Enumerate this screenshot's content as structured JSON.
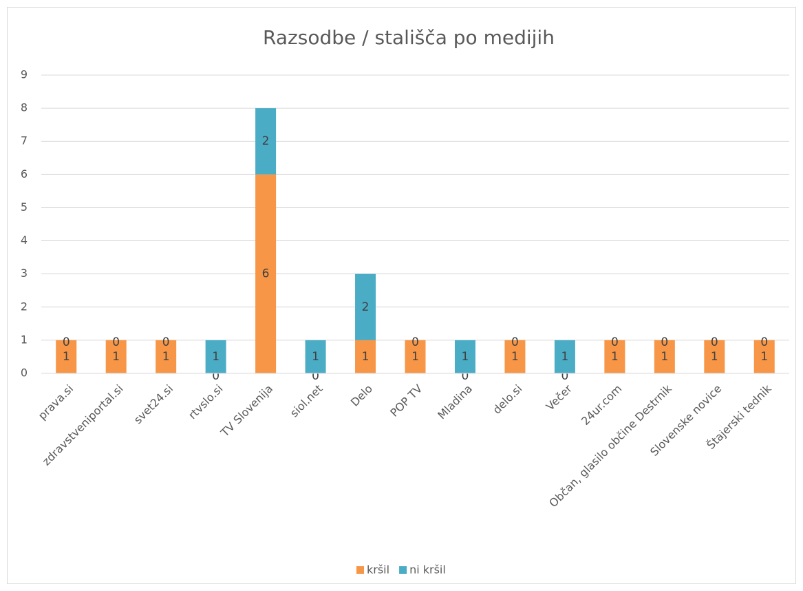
{
  "chart_data": {
    "type": "stacked_bar",
    "title": "Razsodbe / stališča po medijih",
    "categories": [
      "prava.si",
      "zdravstveniportal.si",
      "svet24.si",
      "rtvslo.si",
      "TV Slovenija",
      "siol.net",
      "Delo",
      "POP TV",
      "Mladina",
      "delo.si",
      "Večer",
      "24ur.com",
      "Občan, glasilo občine Destrnik",
      "Slovenske novice",
      "Štajerski tednik"
    ],
    "series": [
      {
        "name": "kršil",
        "color": "#f79646",
        "values": [
          1,
          1,
          1,
          0,
          6,
          0,
          1,
          1,
          0,
          1,
          0,
          1,
          1,
          1,
          1
        ]
      },
      {
        "name": "ni kršil",
        "color": "#4bacc6",
        "values": [
          0,
          0,
          0,
          1,
          2,
          1,
          2,
          0,
          1,
          0,
          1,
          0,
          0,
          0,
          0
        ]
      }
    ],
    "ylim": [
      0,
      9
    ],
    "yticks": [
      0,
      1,
      2,
      3,
      4,
      5,
      6,
      7,
      8,
      9
    ],
    "grid": true,
    "legend": "bottom"
  }
}
